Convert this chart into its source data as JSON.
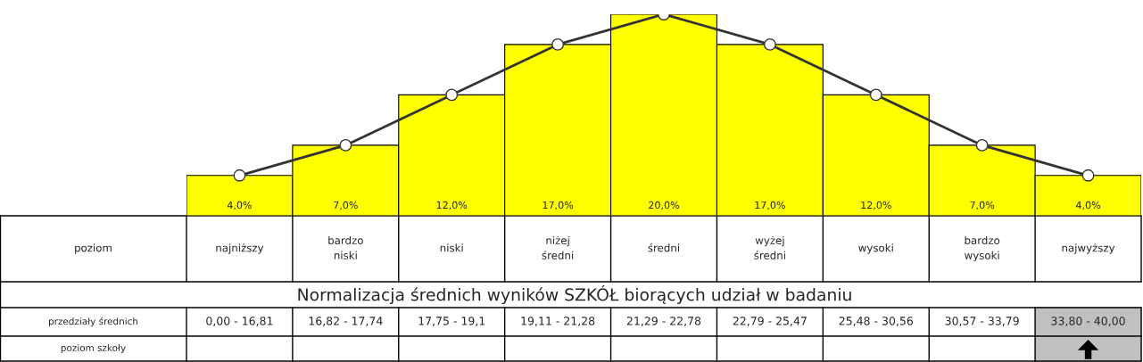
{
  "chart_data": {
    "type": "bar",
    "title": "Normalizacja średnich wyników SZKÓŁ biorących udział w badaniu",
    "categories": [
      "najniższy",
      "bardzo\nniski",
      "niski",
      "niżej\nśredni",
      "średni",
      "wyżej\nśredni",
      "wysoki",
      "bardzo\nwysoki",
      "najwyższy"
    ],
    "series": [
      {
        "color": "#ffff00",
        "values": [
          4,
          7,
          12,
          17,
          20,
          17,
          12,
          7,
          4
        ],
        "value_labels": [
          "4,0%",
          "7,0%",
          "12,0%",
          "17,0%",
          "20,0%",
          "17,0%",
          "12,0%",
          "7,0%",
          "4,0%"
        ]
      },
      {
        "type": "line",
        "color": "#333333",
        "marker": "circle",
        "line_style": "solid",
        "values": [
          4,
          7,
          12,
          17,
          20,
          17,
          12,
          7,
          4
        ]
      }
    ],
    "annotations": [
      "poziom",
      "przedziały średnich",
      "0,00 - 16,81",
      "16,82 - 17,74",
      "17,75 - 19,1",
      "19,11 - 21,28",
      "21,29 - 22,78",
      "22,79 - 25,47",
      "25,48 - 30,56",
      "30,57 - 33,79",
      "33,80 - 40,00",
      "poziom szkoły"
    ]
  }
}
